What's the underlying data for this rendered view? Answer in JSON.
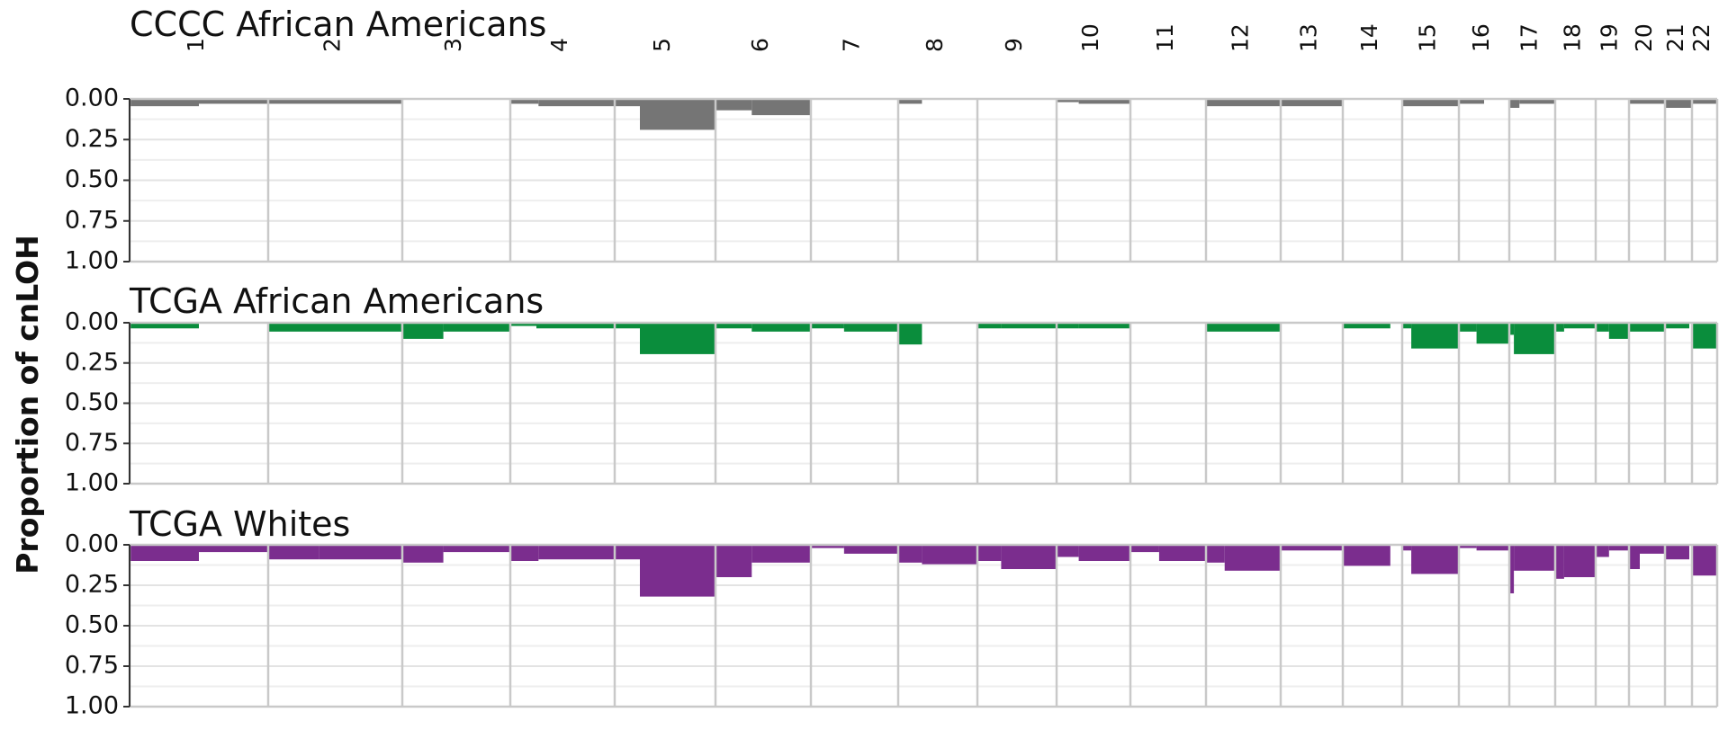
{
  "chart_data": {
    "type": "bar",
    "ylabel": "Proportion of cnLOH",
    "y_ticks": [
      "0.00",
      "0.25",
      "0.50",
      "0.75",
      "1.00"
    ],
    "ylim": [
      0,
      1
    ],
    "y_inverted": true,
    "chromosomes": [
      "1",
      "2",
      "3",
      "4",
      "5",
      "6",
      "7",
      "8",
      "9",
      "10",
      "11",
      "12",
      "13",
      "14",
      "15",
      "16",
      "17",
      "18",
      "19",
      "20",
      "21",
      "22"
    ],
    "panels": [
      {
        "title": "CCCC African Americans",
        "color": "#757575",
        "segments": [
          [
            [
              0,
              0.5,
              0.045
            ],
            [
              0.5,
              1,
              0.03
            ]
          ],
          [
            [
              0,
              1,
              0.03
            ]
          ],
          [],
          [
            [
              0,
              0.27,
              0.03
            ],
            [
              0.27,
              1,
              0.045
            ]
          ],
          [
            [
              0,
              0.25,
              0.045
            ],
            [
              0.25,
              1,
              0.19
            ]
          ],
          [
            [
              0,
              0.38,
              0.07
            ],
            [
              0.38,
              1,
              0.1
            ]
          ],
          [],
          [
            [
              0,
              0.3,
              0.03
            ]
          ],
          [],
          [
            [
              0,
              0.3,
              0.02
            ],
            [
              0.3,
              1,
              0.03
            ]
          ],
          [],
          [
            [
              0,
              1,
              0.045
            ]
          ],
          [
            [
              0,
              1,
              0.045
            ]
          ],
          [],
          [
            [
              0,
              1,
              0.045
            ]
          ],
          [
            [
              0,
              0.5,
              0.03
            ]
          ],
          [
            [
              0,
              0.22,
              0.055
            ],
            [
              0.22,
              1,
              0.03
            ]
          ],
          [],
          [],
          [
            [
              0,
              1,
              0.03
            ]
          ],
          [
            [
              0,
              1,
              0.055
            ]
          ],
          [
            [
              0,
              1,
              0.03
            ]
          ]
        ]
      },
      {
        "title": "TCGA African  Americans",
        "color": "#0a8d3c",
        "segments": [
          [
            [
              0,
              0.5,
              0.035
            ]
          ],
          [
            [
              0,
              1,
              0.055
            ]
          ],
          [
            [
              0,
              0.38,
              0.1
            ],
            [
              0.38,
              1,
              0.055
            ]
          ],
          [
            [
              0,
              0.25,
              0.02
            ],
            [
              0.25,
              1,
              0.035
            ]
          ],
          [
            [
              0,
              0.25,
              0.035
            ],
            [
              0.25,
              1,
              0.195
            ]
          ],
          [
            [
              0,
              0.38,
              0.035
            ],
            [
              0.38,
              1,
              0.055
            ]
          ],
          [
            [
              0,
              0.38,
              0.035
            ],
            [
              0.38,
              1,
              0.055
            ]
          ],
          [
            [
              0,
              0.3,
              0.135
            ]
          ],
          [
            [
              0,
              0.3,
              0.035
            ],
            [
              0.3,
              1,
              0.035
            ]
          ],
          [
            [
              0,
              0.3,
              0.035
            ],
            [
              0.3,
              1,
              0.035
            ]
          ],
          [],
          [
            [
              0,
              1,
              0.055
            ]
          ],
          [],
          [
            [
              0,
              0.8,
              0.035
            ]
          ],
          [
            [
              0,
              0.16,
              0.035
            ],
            [
              0.16,
              1,
              0.16
            ]
          ],
          [
            [
              0,
              0.35,
              0.055
            ],
            [
              0.35,
              1,
              0.13
            ]
          ],
          [
            [
              0,
              0.1,
              0.075
            ],
            [
              0.1,
              1,
              0.195
            ]
          ],
          [
            [
              0,
              0.22,
              0.055
            ],
            [
              0.22,
              1,
              0.035
            ]
          ],
          [
            [
              0,
              0.4,
              0.055
            ],
            [
              0.4,
              1,
              0.1
            ]
          ],
          [
            [
              0,
              1,
              0.055
            ]
          ],
          [
            [
              0,
              0.9,
              0.035
            ]
          ],
          [
            [
              0,
              1,
              0.16
            ]
          ]
        ]
      },
      {
        "title": "TCGA Whites",
        "color": "#7b2d8e",
        "segments": [
          [
            [
              0,
              0.5,
              0.1
            ],
            [
              0.5,
              1,
              0.045
            ]
          ],
          [
            [
              0,
              0.38,
              0.09
            ],
            [
              0.38,
              1,
              0.09
            ]
          ],
          [
            [
              0,
              0.38,
              0.11
            ],
            [
              0.38,
              1,
              0.045
            ]
          ],
          [
            [
              0,
              0.27,
              0.1
            ],
            [
              0.27,
              1,
              0.09
            ]
          ],
          [
            [
              0,
              0.25,
              0.09
            ],
            [
              0.25,
              1,
              0.32
            ]
          ],
          [
            [
              0,
              0.38,
              0.2
            ],
            [
              0.38,
              1,
              0.11
            ]
          ],
          [
            [
              0,
              0.38,
              0.02
            ],
            [
              0.38,
              1,
              0.055
            ]
          ],
          [
            [
              0,
              0.3,
              0.11
            ],
            [
              0.3,
              1,
              0.12
            ]
          ],
          [
            [
              0,
              0.3,
              0.1
            ],
            [
              0.3,
              1,
              0.15
            ]
          ],
          [
            [
              0,
              0.3,
              0.075
            ],
            [
              0.3,
              1,
              0.1
            ]
          ],
          [
            [
              0,
              0.38,
              0.045
            ],
            [
              0.38,
              1,
              0.1
            ]
          ],
          [
            [
              0,
              0.25,
              0.11
            ],
            [
              0.25,
              1,
              0.16
            ]
          ],
          [
            [
              0,
              1,
              0.035
            ]
          ],
          [
            [
              0,
              0.8,
              0.13
            ]
          ],
          [
            [
              0,
              0.16,
              0.035
            ],
            [
              0.16,
              1,
              0.18
            ]
          ],
          [
            [
              0,
              0.35,
              0.02
            ],
            [
              0.35,
              1,
              0.035
            ]
          ],
          [
            [
              0,
              0.1,
              0.3
            ],
            [
              0.1,
              1,
              0.16
            ]
          ],
          [
            [
              0,
              0.22,
              0.21
            ],
            [
              0.22,
              1,
              0.2
            ]
          ],
          [
            [
              0,
              0.4,
              0.075
            ],
            [
              0.4,
              1,
              0.035
            ]
          ],
          [
            [
              0,
              0.3,
              0.15
            ],
            [
              0.3,
              1,
              0.055
            ]
          ],
          [
            [
              0,
              0.9,
              0.09
            ]
          ],
          [
            [
              0,
              1,
              0.19
            ]
          ]
        ]
      }
    ]
  }
}
